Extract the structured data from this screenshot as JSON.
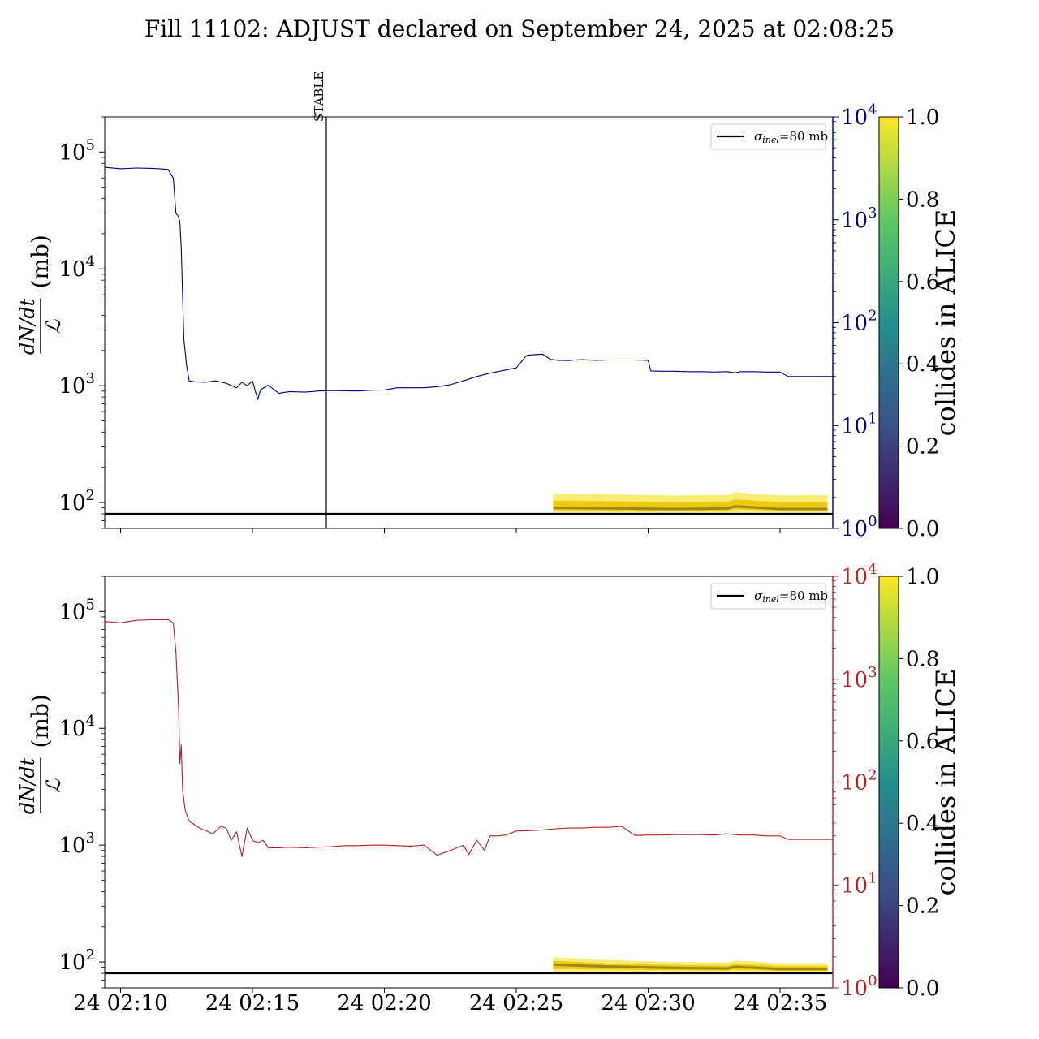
{
  "page": {
    "title": "Fill 11102: ADJUST declared on September 24, 2025 at 02:08:25"
  },
  "colors": {
    "top_series": "#00007f",
    "bottom_series": "#b22222",
    "reference_line": "#000000",
    "band_fill": "#f5dd00",
    "band_core": "#6b5a1e",
    "colorbar_stops": [
      "#440154",
      "#3b528b",
      "#21908d",
      "#5dc863",
      "#fde725"
    ]
  },
  "chart_data": [
    {
      "type": "line",
      "panel": "top",
      "ylabel_fraction_num": "dN/dt",
      "ylabel_fraction_den": "ℒ",
      "ylabel_unit": "(mb)",
      "y_scale": "log",
      "ylim": [
        60,
        200000
      ],
      "yticks": [
        {
          "v": 100,
          "exp": "2"
        },
        {
          "v": 1000,
          "exp": "3"
        },
        {
          "v": 10000,
          "exp": "4"
        },
        {
          "v": 100000,
          "exp": "5"
        }
      ],
      "xlim": [
        9.4,
        37.0
      ],
      "x_unit": "minutes after 24 Sep 2025 02:00",
      "x_scale_visible": false,
      "right_axis": {
        "scale": "log",
        "ylim": [
          1,
          10000
        ],
        "color": "#00007f",
        "ticks": [
          {
            "v": 1,
            "exp": "0"
          },
          {
            "v": 10,
            "exp": "1"
          },
          {
            "v": 100,
            "exp": "2"
          },
          {
            "v": 1000,
            "exp": "3"
          },
          {
            "v": 10000,
            "exp": "4"
          }
        ]
      },
      "vline": {
        "x": 17.8,
        "label": "STABLE"
      },
      "hline": {
        "y": 80
      },
      "legend": {
        "position": "top-right",
        "label_sym": "σ",
        "label_sub": "inel",
        "label_rest": "=80 mb"
      },
      "series": [
        {
          "color": "#00007f",
          "x": [
            9.4,
            10.0,
            10.6,
            11.2,
            11.8,
            12.0,
            12.1,
            12.2,
            12.25,
            12.3,
            12.35,
            12.4,
            12.5,
            12.6,
            12.8,
            13.2,
            13.6,
            14.0,
            14.4,
            14.6,
            14.8,
            15.0,
            15.2,
            15.3,
            15.4,
            15.6,
            16.0,
            16.4,
            17.0,
            17.5,
            18.0,
            18.5,
            19.0,
            19.5,
            20.0,
            20.5,
            21.0,
            21.5,
            22.0,
            22.5,
            23.0,
            23.5,
            24.0,
            24.5,
            25.0,
            25.4,
            25.8,
            26.0,
            26.3,
            26.6,
            27.0,
            27.2,
            27.5,
            28.0,
            28.5,
            29.0,
            29.5,
            30.0,
            30.1,
            30.5,
            31.0,
            31.5,
            32.0,
            32.5,
            33.0,
            33.3,
            33.5,
            34.0,
            34.5,
            35.0,
            35.3,
            35.5,
            36.0,
            36.5,
            37.0
          ],
          "y": [
            74000,
            72000,
            73000,
            72500,
            71000,
            60000,
            30000,
            28000,
            25000,
            15000,
            6000,
            2500,
            1500,
            1100,
            1080,
            1070,
            1100,
            1050,
            960,
            1070,
            1000,
            1100,
            760,
            920,
            950,
            1010,
            860,
            890,
            880,
            900,
            910,
            905,
            900,
            915,
            920,
            960,
            960,
            960,
            980,
            1020,
            1100,
            1200,
            1280,
            1350,
            1420,
            1820,
            1850,
            1860,
            1680,
            1650,
            1640,
            1660,
            1670,
            1650,
            1660,
            1660,
            1660,
            1650,
            1340,
            1330,
            1330,
            1320,
            1320,
            1310,
            1320,
            1290,
            1320,
            1320,
            1310,
            1310,
            1200,
            1200,
            1200,
            1200,
            1200
          ]
        },
        {
          "label": "σinel=80 mb",
          "color": "#000000",
          "x": [
            9.4,
            37.0
          ],
          "y": [
            80,
            80
          ]
        }
      ],
      "band": {
        "x": [
          26.4,
          29.0,
          31.0,
          33.0,
          33.3,
          35.0,
          36.8
        ],
        "upper": [
          120,
          117,
          115,
          116,
          122,
          115,
          116
        ],
        "lower": [
          82,
          82,
          82,
          82,
          82,
          82,
          82
        ],
        "core": [
          90,
          89,
          88,
          89,
          93,
          88,
          88
        ]
      }
    },
    {
      "type": "line",
      "panel": "bottom",
      "ylabel_fraction_num": "dN/dt",
      "ylabel_fraction_den": "ℒ",
      "ylabel_unit": "(mb)",
      "y_scale": "log",
      "ylim": [
        60,
        200000
      ],
      "yticks": [
        {
          "v": 100,
          "exp": "2"
        },
        {
          "v": 1000,
          "exp": "3"
        },
        {
          "v": 10000,
          "exp": "4"
        },
        {
          "v": 100000,
          "exp": "5"
        }
      ],
      "xlim": [
        9.4,
        37.0
      ],
      "x_unit": "minutes after 24 Sep 2025 02:00",
      "xticks": [
        {
          "v": 10,
          "label": "24 02:10"
        },
        {
          "v": 15,
          "label": "24 02:15"
        },
        {
          "v": 20,
          "label": "24 02:20"
        },
        {
          "v": 25,
          "label": "24 02:25"
        },
        {
          "v": 30,
          "label": "24 02:30"
        },
        {
          "v": 35,
          "label": "24 02:35"
        }
      ],
      "right_axis": {
        "scale": "log",
        "ylim": [
          1,
          10000
        ],
        "color": "#b22222",
        "ticks": [
          {
            "v": 1,
            "exp": "0"
          },
          {
            "v": 10,
            "exp": "1"
          },
          {
            "v": 100,
            "exp": "2"
          },
          {
            "v": 1000,
            "exp": "3"
          },
          {
            "v": 10000,
            "exp": "4"
          }
        ]
      },
      "hline": {
        "y": 80
      },
      "legend": {
        "position": "top-right",
        "label_sym": "σ",
        "label_sub": "inel",
        "label_rest": "=80 mb"
      },
      "series": [
        {
          "color": "#b22222",
          "x": [
            9.4,
            10.0,
            10.6,
            11.2,
            11.8,
            12.0,
            12.1,
            12.2,
            12.25,
            12.3,
            12.35,
            12.45,
            12.6,
            13.0,
            13.5,
            13.8,
            14.0,
            14.2,
            14.4,
            14.6,
            14.8,
            15.0,
            15.2,
            15.4,
            15.6,
            16.0,
            16.4,
            17.0,
            17.5,
            18.0,
            18.5,
            19.0,
            19.5,
            20.0,
            20.5,
            21.0,
            21.5,
            22.0,
            22.5,
            23.0,
            23.2,
            23.5,
            23.8,
            24.0,
            24.3,
            24.6,
            25.0,
            25.5,
            26.0,
            26.5,
            27.0,
            27.5,
            28.0,
            28.5,
            29.0,
            29.5,
            30.0,
            30.5,
            31.0,
            31.5,
            32.0,
            32.5,
            33.0,
            33.3,
            33.5,
            34.0,
            34.5,
            35.0,
            35.3,
            35.5,
            36.0,
            36.5,
            37.0
          ],
          "y": [
            82000,
            80000,
            84000,
            85000,
            85000,
            80000,
            45000,
            15000,
            5000,
            7200,
            3000,
            2000,
            1600,
            1400,
            1250,
            1450,
            1400,
            1100,
            1300,
            800,
            1400,
            1100,
            1050,
            1100,
            950,
            950,
            960,
            950,
            960,
            970,
            990,
            990,
            1000,
            1000,
            990,
            980,
            1000,
            820,
            900,
            1000,
            830,
            1100,
            900,
            1200,
            1200,
            1220,
            1320,
            1330,
            1350,
            1380,
            1400,
            1400,
            1420,
            1420,
            1450,
            1210,
            1220,
            1220,
            1230,
            1230,
            1230,
            1220,
            1250,
            1230,
            1220,
            1220,
            1200,
            1200,
            1120,
            1120,
            1120,
            1120,
            1120
          ]
        },
        {
          "label": "σinel=80 mb",
          "color": "#000000",
          "x": [
            9.4,
            37.0
          ],
          "y": [
            80,
            80
          ]
        }
      ],
      "band": {
        "x": [
          26.4,
          28.0,
          29.0,
          31.0,
          33.0,
          33.3,
          35.0,
          36.8
        ],
        "upper": [
          110,
          105,
          103,
          100,
          99,
          103,
          98,
          98
        ],
        "lower": [
          80,
          81,
          81,
          81,
          81,
          81,
          81,
          81
        ],
        "core": [
          95,
          92,
          91,
          89,
          88,
          91,
          87,
          87
        ]
      }
    }
  ],
  "colorbar": {
    "label": "collides in ALICE",
    "range": [
      0.0,
      1.0
    ],
    "ticks": [
      "0.0",
      "0.2",
      "0.4",
      "0.6",
      "0.8",
      "1.0"
    ]
  }
}
